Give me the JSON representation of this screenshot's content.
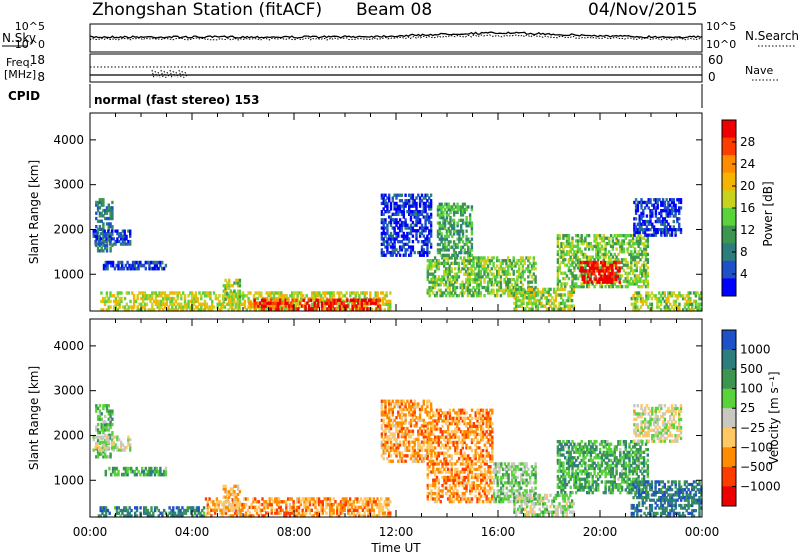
{
  "header": {
    "station": "Zhongshan Station (fitACF)",
    "beam": "Beam 08",
    "date": "04/Nov/2015"
  },
  "strip_noise": {
    "left_label": "N.Sky",
    "right_label": "N.Search",
    "left_ticks": [
      "10^5",
      "10^0"
    ],
    "right_ticks": [
      "10^5",
      "10^0"
    ]
  },
  "strip_freq": {
    "left_label_line1": "Freq.",
    "left_label_line2": "[MHz]",
    "right_label": "Nave",
    "left_ticks": [
      "18",
      "8"
    ],
    "right_ticks": [
      "60",
      "0"
    ],
    "cpid_label": "CPID",
    "cpid_text": "normal (fast stereo) 153"
  },
  "chart_data": [
    {
      "type": "heatmap",
      "title": "",
      "xlabel": "",
      "ylabel": "Slant Range [km]",
      "x_range_hours": [
        0,
        24
      ],
      "ylim": [
        180,
        4600
      ],
      "y_ticks": [
        1000,
        2000,
        3000,
        4000
      ],
      "colorbar_label": "Power [dB]",
      "colorbar_ticks": [
        "28",
        "24",
        "20",
        "16",
        "12",
        "8",
        "4"
      ],
      "colorbar_colors": [
        "#ee0000",
        "#ff3c00",
        "#ff8c00",
        "#f5b400",
        "#c8d21e",
        "#5ad23c",
        "#3c9650",
        "#2d7d7d",
        "#1e50c8",
        "#0000ff"
      ],
      "regions": [
        {
          "t0": 0.2,
          "t1": 0.9,
          "r0": 1500,
          "r1": 2700,
          "level": 0.25
        },
        {
          "t0": 0.1,
          "t1": 1.6,
          "r0": 1650,
          "r1": 2000,
          "level": 0.15
        },
        {
          "t0": 0.5,
          "t1": 3.0,
          "r0": 1100,
          "r1": 1300,
          "level": 0.12
        },
        {
          "t0": 0.4,
          "t1": 11.8,
          "r0": 180,
          "r1": 620,
          "level": 0.55
        },
        {
          "t0": 6.2,
          "t1": 11.4,
          "r0": 200,
          "r1": 460,
          "level": 0.9
        },
        {
          "t0": 5.2,
          "t1": 5.9,
          "r0": 300,
          "r1": 900,
          "level": 0.5
        },
        {
          "t0": 13.2,
          "t1": 17.5,
          "r0": 500,
          "r1": 1400,
          "level": 0.45
        },
        {
          "t0": 13.6,
          "t1": 15.0,
          "r0": 1400,
          "r1": 2600,
          "level": 0.35
        },
        {
          "t0": 18.3,
          "t1": 21.9,
          "r0": 700,
          "r1": 1900,
          "level": 0.45
        },
        {
          "t0": 19.2,
          "t1": 20.8,
          "r0": 800,
          "r1": 1300,
          "level": 0.95
        },
        {
          "t0": 21.2,
          "t1": 24.0,
          "r0": 180,
          "r1": 620,
          "level": 0.5
        },
        {
          "t0": 21.3,
          "t1": 23.2,
          "r0": 1850,
          "r1": 2700,
          "level": 0.12
        },
        {
          "t0": 11.4,
          "t1": 13.4,
          "r0": 1400,
          "r1": 2800,
          "level": 0.1
        },
        {
          "t0": 16.6,
          "t1": 19.0,
          "r0": 200,
          "r1": 700,
          "level": 0.5
        }
      ]
    },
    {
      "type": "heatmap",
      "title": "",
      "xlabel": "Time UT",
      "ylabel": "Slant Range [km]",
      "x_range_hours": [
        0,
        24
      ],
      "ylim": [
        180,
        4600
      ],
      "y_ticks": [
        1000,
        2000,
        3000,
        4000
      ],
      "x_tick_labels": [
        "00:00",
        "04:00",
        "08:00",
        "12:00",
        "16:00",
        "20:00",
        "00:00"
      ],
      "colorbar_label": "Velocity [m s⁻¹]",
      "colorbar_ticks": [
        "1000",
        "500",
        "100",
        "25",
        "−25",
        "−100",
        "−500",
        "−1000"
      ],
      "colorbar_colors": [
        "#1e50c8",
        "#2d7d7d",
        "#3c9650",
        "#5ad23c",
        "#c8c8c0",
        "#ffc864",
        "#ff8c00",
        "#ff3c00",
        "#ee0000"
      ],
      "regions": [
        {
          "t0": 0.2,
          "t1": 0.9,
          "r0": 1500,
          "r1": 2700,
          "level": 0.35
        },
        {
          "t0": 0.1,
          "t1": 1.6,
          "r0": 1650,
          "r1": 2000,
          "level": 0.5
        },
        {
          "t0": 0.5,
          "t1": 3.0,
          "r0": 1100,
          "r1": 1300,
          "level": 0.3
        },
        {
          "t0": 0.3,
          "t1": 4.5,
          "r0": 180,
          "r1": 420,
          "level": 0.2
        },
        {
          "t0": 4.5,
          "t1": 11.8,
          "r0": 180,
          "r1": 620,
          "level": 0.7
        },
        {
          "t0": 5.2,
          "t1": 5.9,
          "r0": 300,
          "r1": 900,
          "level": 0.65
        },
        {
          "t0": 13.2,
          "t1": 15.8,
          "r0": 500,
          "r1": 2600,
          "level": 0.7
        },
        {
          "t0": 15.8,
          "t1": 17.5,
          "r0": 500,
          "r1": 1400,
          "level": 0.4
        },
        {
          "t0": 18.3,
          "t1": 21.9,
          "r0": 700,
          "r1": 1900,
          "level": 0.3
        },
        {
          "t0": 21.2,
          "t1": 24.0,
          "r0": 180,
          "r1": 1000,
          "level": 0.15
        },
        {
          "t0": 21.3,
          "t1": 23.2,
          "r0": 1850,
          "r1": 2700,
          "level": 0.52
        },
        {
          "t0": 11.4,
          "t1": 13.4,
          "r0": 1400,
          "r1": 2800,
          "level": 0.68
        },
        {
          "t0": 16.6,
          "t1": 19.0,
          "r0": 200,
          "r1": 700,
          "level": 0.45
        }
      ]
    }
  ]
}
